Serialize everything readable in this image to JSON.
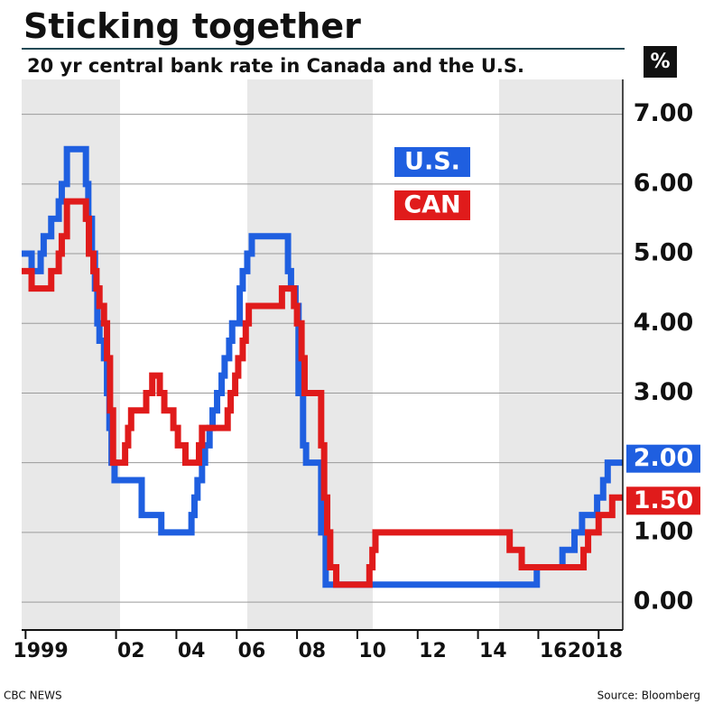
{
  "chart_data": {
    "type": "step-line",
    "title": "Sticking together",
    "subtitle": "20 yr central bank rate in Canada and the U.S.",
    "y_unit": "%",
    "source": "Source: Bloomberg",
    "credit": "CBC NEWS",
    "xlim": [
      1998.87,
      2018.8
    ],
    "xticks": [
      {
        "value": 1999,
        "label": "1999"
      },
      {
        "value": 2002,
        "label": "02"
      },
      {
        "value": 2004,
        "label": "04"
      },
      {
        "value": 2006,
        "label": "06"
      },
      {
        "value": 2008,
        "label": "08"
      },
      {
        "value": 2010,
        "label": "10"
      },
      {
        "value": 2012,
        "label": "12"
      },
      {
        "value": 2014,
        "label": "14"
      },
      {
        "value": 2016,
        "label": "16"
      },
      {
        "value": 2018,
        "label": "2018"
      }
    ],
    "ylim": [
      -0.4,
      7.5
    ],
    "yticks": [
      {
        "value": 0,
        "label": "0.00"
      },
      {
        "value": 1,
        "label": "1.00"
      },
      {
        "value": 2,
        "label": "2.00"
      },
      {
        "value": 3,
        "label": "3.00"
      },
      {
        "value": 4,
        "label": "4.00"
      },
      {
        "value": 5,
        "label": "5.00"
      },
      {
        "value": 6,
        "label": "6.00"
      },
      {
        "value": 7,
        "label": "7.00"
      }
    ],
    "grid": true,
    "series": [
      {
        "name": "U.S.",
        "color": "#1f5fe0",
        "end_label": "2.00",
        "x": [
          1998.87,
          1999.2,
          1999.5,
          1999.6,
          1999.85,
          2000.1,
          2000.2,
          2000.37,
          2001.0,
          2001.08,
          2001.2,
          2001.3,
          2001.38,
          2001.45,
          2001.6,
          2001.7,
          2001.78,
          2001.85,
          2001.95,
          2002.85,
          2003.5,
          2004.5,
          2004.6,
          2004.7,
          2004.85,
          2004.95,
          2005.1,
          2005.2,
          2005.35,
          2005.5,
          2005.6,
          2005.75,
          2005.85,
          2006.1,
          2006.2,
          2006.35,
          2006.5,
          2007.7,
          2007.8,
          2007.95,
          2008.05,
          2008.2,
          2008.3,
          2008.8,
          2008.95,
          2015.95,
          2016.8,
          2017.2,
          2017.45,
          2017.95,
          2018.15,
          2018.3,
          2018.8
        ],
        "values": [
          5.0,
          4.75,
          5.0,
          5.25,
          5.5,
          5.75,
          6.0,
          6.5,
          6.0,
          5.5,
          5.0,
          4.5,
          4.0,
          3.75,
          3.5,
          3.0,
          2.5,
          2.0,
          1.75,
          1.25,
          1.0,
          1.25,
          1.5,
          1.75,
          2.0,
          2.25,
          2.5,
          2.75,
          3.0,
          3.25,
          3.5,
          3.75,
          4.0,
          4.5,
          4.75,
          5.0,
          5.25,
          4.75,
          4.5,
          4.25,
          3.0,
          2.25,
          2.0,
          1.0,
          0.25,
          0.5,
          0.75,
          1.0,
          1.25,
          1.5,
          1.75,
          2.0,
          2.0
        ]
      },
      {
        "name": "CAN",
        "color": "#e01b1b",
        "end_label": "1.50",
        "x": [
          1998.87,
          1999.2,
          1999.85,
          2000.1,
          2000.2,
          2000.37,
          2001.0,
          2001.1,
          2001.25,
          2001.35,
          2001.45,
          2001.6,
          2001.7,
          2001.8,
          2001.9,
          2002.3,
          2002.4,
          2002.5,
          2003.0,
          2003.2,
          2003.45,
          2003.6,
          2003.9,
          2004.05,
          2004.3,
          2004.75,
          2004.85,
          2005.7,
          2005.8,
          2005.95,
          2006.05,
          2006.2,
          2006.3,
          2006.4,
          2007.5,
          2007.9,
          2008.0,
          2008.15,
          2008.25,
          2008.8,
          2008.9,
          2009.0,
          2009.1,
          2009.3,
          2010.4,
          2010.5,
          2010.6,
          2015.05,
          2015.45,
          2017.5,
          2017.65,
          2018.0,
          2018.45,
          2018.8
        ],
        "values": [
          4.75,
          4.5,
          4.75,
          5.0,
          5.25,
          5.75,
          5.5,
          5.0,
          4.75,
          4.5,
          4.25,
          4.0,
          3.5,
          2.75,
          2.0,
          2.25,
          2.5,
          2.75,
          3.0,
          3.25,
          3.0,
          2.75,
          2.5,
          2.25,
          2.0,
          2.25,
          2.5,
          2.75,
          3.0,
          3.25,
          3.5,
          3.75,
          4.0,
          4.25,
          4.5,
          4.25,
          4.0,
          3.5,
          3.0,
          2.25,
          1.5,
          1.0,
          0.5,
          0.25,
          0.5,
          0.75,
          1.0,
          0.75,
          0.5,
          0.75,
          1.0,
          1.25,
          1.5,
          1.5
        ]
      }
    ]
  }
}
